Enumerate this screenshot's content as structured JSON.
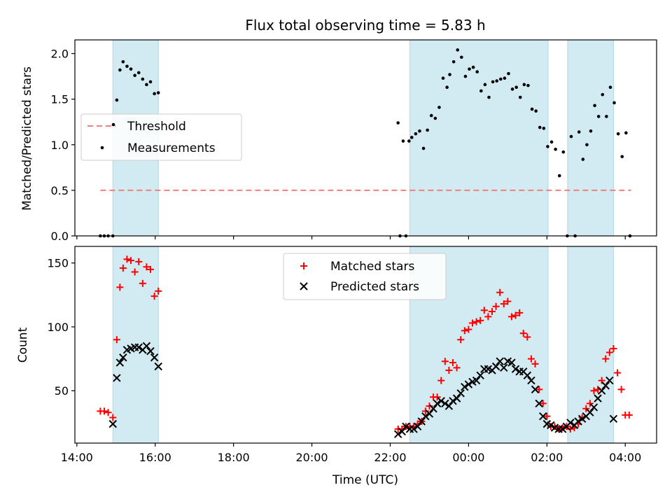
{
  "chart_data": {
    "type": "scatter",
    "title": "Flux total observing time = 5.83 h",
    "xlabel": "Time (UTC)",
    "x_ticks": [
      "14:00",
      "16:00",
      "18:00",
      "20:00",
      "22:00",
      "00:00",
      "02:00",
      "04:00"
    ],
    "xlim": [
      13.95,
      28.8
    ],
    "shaded_intervals": [
      [
        14.92,
        16.08
      ],
      [
        22.5,
        26.03
      ],
      [
        26.53,
        27.7
      ]
    ],
    "colors": {
      "shade": "#add8e6",
      "threshold": "#f08080",
      "measurement": "#000000",
      "matched": "#ff0000",
      "predicted": "#000000"
    },
    "panels": [
      {
        "ylabel": "Matched/Predicted stars",
        "ylim": [
          0,
          2.15
        ],
        "y_ticks": [
          0.0,
          0.5,
          1.0,
          1.5,
          2.0
        ],
        "y_tick_labels": [
          "0.0",
          "0.5",
          "1.0",
          "1.5",
          "2.0"
        ],
        "legend": {
          "placement": "center-left",
          "entries": [
            "Threshold",
            "Measurements"
          ]
        },
        "threshold": {
          "name": "Threshold",
          "y": 0.5,
          "x_range": [
            14.6,
            28.15
          ]
        },
        "series": [
          {
            "name": "Measurements",
            "marker": "dot",
            "x": [
              14.6,
              14.7,
              14.8,
              14.92,
              15.02,
              15.1,
              15.18,
              15.28,
              15.38,
              15.48,
              15.58,
              15.68,
              15.78,
              15.88,
              15.98,
              16.08,
              22.2,
              22.25,
              22.33,
              22.4,
              22.48,
              22.55,
              22.65,
              22.75,
              22.85,
              22.95,
              23.05,
              23.15,
              23.25,
              23.35,
              23.45,
              23.52,
              23.62,
              23.72,
              23.82,
              23.92,
              24.02,
              24.12,
              24.22,
              24.32,
              24.42,
              24.52,
              24.62,
              24.72,
              24.82,
              24.92,
              25.02,
              25.12,
              25.22,
              25.32,
              25.42,
              25.52,
              25.62,
              25.72,
              25.82,
              25.92,
              26.02,
              26.12,
              26.22,
              26.32,
              26.42,
              26.52,
              26.62,
              26.72,
              26.82,
              26.92,
              27.02,
              27.12,
              27.22,
              27.32,
              27.42,
              27.52,
              27.62,
              27.72,
              27.82,
              27.92,
              28.02,
              28.12
            ],
            "y": [
              0.0,
              0.0,
              0.0,
              0.0,
              1.49,
              1.82,
              1.91,
              1.86,
              1.83,
              1.76,
              1.79,
              1.72,
              1.66,
              1.69,
              1.56,
              1.57,
              1.24,
              0.0,
              1.04,
              0.0,
              1.04,
              1.08,
              1.12,
              1.15,
              0.96,
              1.16,
              1.32,
              1.29,
              1.41,
              1.73,
              1.63,
              1.77,
              1.91,
              2.04,
              1.96,
              1.75,
              1.83,
              1.85,
              1.8,
              1.59,
              1.66,
              1.52,
              1.69,
              1.7,
              1.72,
              1.73,
              1.78,
              1.61,
              1.63,
              1.52,
              1.66,
              1.65,
              1.39,
              1.37,
              1.19,
              1.18,
              0.98,
              1.03,
              0.95,
              0.66,
              0.92,
              0.0,
              1.09,
              0.0,
              1.14,
              0.84,
              1.0,
              1.15,
              1.43,
              1.31,
              1.55,
              1.31,
              1.63,
              1.46,
              1.12,
              0.87,
              1.13,
              0.0
            ]
          }
        ]
      },
      {
        "ylabel": "Count",
        "ylim": [
          9,
          163
        ],
        "y_ticks": [
          50,
          100,
          150
        ],
        "y_tick_labels": [
          "50",
          "100",
          "150"
        ],
        "legend": {
          "placement": "upper-center",
          "entries": [
            "Matched stars",
            "Predicted stars"
          ]
        },
        "series": [
          {
            "name": "Matched stars",
            "marker": "plus",
            "x": [
              14.6,
              14.7,
              14.8,
              14.92,
              15.02,
              15.1,
              15.18,
              15.28,
              15.38,
              15.48,
              15.58,
              15.68,
              15.78,
              15.88,
              15.98,
              16.08,
              22.2,
              22.3,
              22.4,
              22.5,
              22.6,
              22.7,
              22.8,
              22.9,
              23.0,
              23.1,
              23.2,
              23.3,
              23.4,
              23.5,
              23.6,
              23.7,
              23.8,
              23.9,
              24.0,
              24.1,
              24.2,
              24.3,
              24.4,
              24.5,
              24.6,
              24.7,
              24.8,
              24.9,
              25.0,
              25.1,
              25.2,
              25.3,
              25.4,
              25.5,
              25.6,
              25.7,
              25.8,
              25.9,
              26.0,
              26.1,
              26.2,
              26.3,
              26.4,
              26.5,
              26.6,
              26.7,
              26.8,
              26.9,
              27.0,
              27.1,
              27.2,
              27.3,
              27.4,
              27.5,
              27.6,
              27.7,
              27.8,
              27.9,
              28.0,
              28.1
            ],
            "y": [
              34,
              34,
              33,
              29,
              90,
              131,
              146,
              153,
              152,
              143,
              151,
              134,
              147,
              145,
              124,
              128,
              20,
              20,
              22,
              22,
              22,
              24,
              26,
              34,
              38,
              45,
              45,
              58,
              73,
              66,
              72,
              68,
              90,
              97,
              98,
              103,
              104,
              105,
              113,
              108,
              112,
              116,
              127,
              118,
              120,
              108,
              109,
              111,
              95,
              92,
              75,
              71,
              51,
              40,
              30,
              22,
              22,
              20,
              21,
              22,
              20,
              21,
              24,
              29,
              36,
              40,
              50,
              51,
              58,
              75,
              80,
              83,
              64,
              51,
              31,
              31
            ]
          },
          {
            "name": "Predicted stars",
            "marker": "cross",
            "x": [
              14.92,
              15.02,
              15.1,
              15.18,
              15.28,
              15.38,
              15.48,
              15.58,
              15.68,
              15.78,
              15.88,
              15.98,
              16.08,
              22.2,
              22.3,
              22.4,
              22.5,
              22.6,
              22.7,
              22.8,
              22.9,
              23.0,
              23.1,
              23.2,
              23.3,
              23.4,
              23.5,
              23.6,
              23.7,
              23.8,
              23.9,
              24.0,
              24.1,
              24.2,
              24.3,
              24.4,
              24.5,
              24.6,
              24.7,
              24.8,
              24.9,
              25.0,
              25.1,
              25.2,
              25.3,
              25.4,
              25.5,
              25.6,
              25.7,
              25.8,
              25.9,
              26.0,
              26.1,
              26.2,
              26.3,
              26.4,
              26.5,
              26.6,
              26.7,
              26.8,
              26.9,
              27.0,
              27.1,
              27.2,
              27.3,
              27.4,
              27.5,
              27.6,
              27.7
            ],
            "y": [
              24,
              60,
              72,
              76,
              82,
              83,
              84,
              84,
              82,
              85,
              81,
              76,
              69,
              16,
              18,
              22,
              20,
              20,
              22,
              26,
              30,
              32,
              36,
              40,
              42,
              40,
              38,
              42,
              44,
              48,
              53,
              55,
              57,
              58,
              62,
              67,
              67,
              66,
              69,
              73,
              68,
              73,
              72,
              67,
              65,
              65,
              62,
              58,
              51,
              40,
              30,
              24,
              23,
              21,
              20,
              20,
              22,
              25,
              23,
              26,
              28,
              30,
              33,
              37,
              44,
              50,
              54,
              58,
              28
            ]
          }
        ]
      }
    ]
  }
}
